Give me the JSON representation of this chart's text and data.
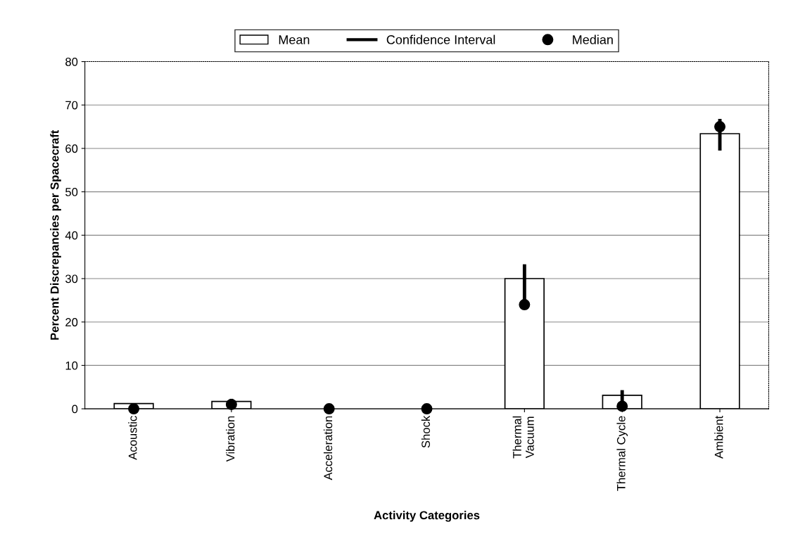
{
  "chart_data": {
    "type": "bar",
    "xlabel": "Activity Categories",
    "ylabel": "Percent Discrepancies per Spacecraft",
    "categories": [
      "Acoustic",
      "Vibration",
      "Acceleration",
      "Shock",
      "Thermal\nVacuum",
      "Thermal Cycle",
      "Ambient"
    ],
    "series": [
      {
        "name": "Mean",
        "color": "#ffffff",
        "values": [
          1.2,
          1.7,
          0,
          0,
          30,
          3.1,
          63.4
        ]
      },
      {
        "name": "Confidence Interval",
        "type": "bar",
        "color": "#000000",
        "base": [
          null,
          1,
          null,
          null,
          24,
          0.5,
          59.5
        ],
        "values": [
          null,
          1.3,
          null,
          null,
          9.3,
          3.8,
          7.3
        ]
      },
      {
        "name": "Median",
        "type": "scatter",
        "color": "#000000",
        "marker": "circle",
        "values": [
          0,
          1,
          0,
          0,
          24,
          0.6,
          65
        ]
      }
    ],
    "ylim": [
      0,
      80
    ],
    "yticks": [
      0,
      10,
      20,
      30,
      40,
      50,
      60,
      70,
      80
    ],
    "grid": "y",
    "legend": "top"
  }
}
